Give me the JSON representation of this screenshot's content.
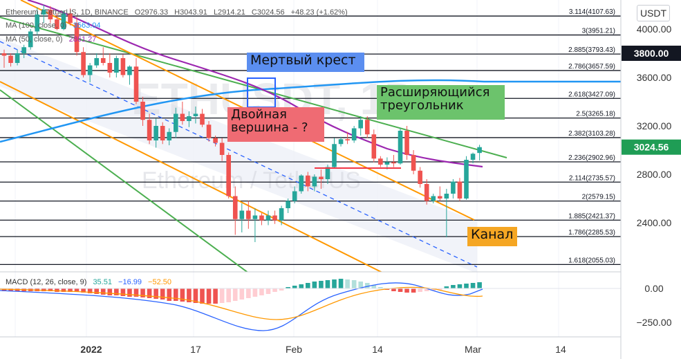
{
  "header": {
    "symbol": "Ethereum / TetherUS, 1D, BINANCE",
    "open": "O2976.33",
    "high": "H3043.91",
    "low": "L2914.21",
    "close": "C3024.56",
    "change": "+48.23 (+1.62%)",
    "ma1_label": "MA (100, close, 0)",
    "ma1_value": "3563.04",
    "ma2_label": "MA (50, close, 0)",
    "ma2_value": "2861.27",
    "currency_button": "USDT"
  },
  "annotations": {
    "death_cross": "Мертвый крест",
    "double_top": "Двойная\nвершина - ?",
    "triangle": "Расширяющийся\nтреугольник",
    "channel": "Канал"
  },
  "watermark": {
    "big": "ETHUSDT, 1D",
    "small": "Ethereum / TetherUS"
  },
  "price_axis": {
    "ticks": [
      "4000.00",
      "3600.00",
      "3200.00",
      "2800.00",
      "2400.00"
    ],
    "highlight_label": "3800.00",
    "last_price_label": "3024.56"
  },
  "macd": {
    "label": "MACD (12, 26, close, 9)",
    "hist": "35.51",
    "macd": "−16.99",
    "signal": "−52.50",
    "ticks": [
      "0.00",
      "−250.00"
    ]
  },
  "time_axis": {
    "labels": [
      "2022",
      "17",
      "Feb",
      "14",
      "Mar",
      "14"
    ]
  },
  "fib_levels": [
    {
      "ratio": "3.114",
      "price": 4107.63
    },
    {
      "ratio": "3",
      "price": 3951.21
    },
    {
      "ratio": "2.885",
      "price": 3793.43
    },
    {
      "ratio": "2.786",
      "price": 3657.59
    },
    {
      "ratio": "2.618",
      "price": 3427.09
    },
    {
      "ratio": "2.5",
      "price": 3265.18
    },
    {
      "ratio": "2.382",
      "price": 3103.28
    },
    {
      "ratio": "2.236",
      "price": 2902.96
    },
    {
      "ratio": "2.114",
      "price": 2735.57
    },
    {
      "ratio": "2",
      "price": 2579.15
    },
    {
      "ratio": "1.885",
      "price": 2421.37
    },
    {
      "ratio": "1.786",
      "price": 2285.53
    },
    {
      "ratio": "1.618",
      "price": 2055.03
    }
  ],
  "colors": {
    "up": "#26a69a",
    "down": "#ef5350",
    "ma100": "#2196f3",
    "ma50": "#9c27b0",
    "green_line": "#4caf50",
    "orange_line": "#ff9800",
    "dashed": "#2962ff",
    "death_cross_bg": "#5b8ef0",
    "double_top_bg": "#ef6b73",
    "triangle_bg": "#6cc36c",
    "channel_bg": "#f5a623",
    "last_price_bg": "#1f9d55",
    "highlight_bg": "#131722",
    "macd_line": "#2962ff",
    "signal_line": "#ff9800"
  },
  "chart_data": {
    "type": "candlestick",
    "x_labels": [
      "2022",
      "17",
      "Feb",
      "14",
      "Mar",
      "14"
    ],
    "y_range": [
      1980,
      4200
    ],
    "candles": [
      [
        3800,
        3830,
        3680,
        3780
      ],
      [
        3780,
        3800,
        3690,
        3720
      ],
      [
        3720,
        3830,
        3700,
        3800
      ],
      [
        3800,
        3870,
        3760,
        3850
      ],
      [
        3850,
        4000,
        3830,
        3980
      ],
      [
        3980,
        4180,
        3950,
        4120
      ],
      [
        4120,
        4200,
        4050,
        4160
      ],
      [
        4160,
        4190,
        4050,
        4080
      ],
      [
        4080,
        4130,
        3990,
        4000
      ],
      [
        4000,
        4150,
        3990,
        4130
      ],
      [
        4130,
        4170,
        4030,
        4050
      ],
      [
        4050,
        4100,
        3780,
        3810
      ],
      [
        3810,
        3850,
        3600,
        3620
      ],
      [
        3620,
        3720,
        3560,
        3700
      ],
      [
        3700,
        3800,
        3680,
        3760
      ],
      [
        3760,
        3850,
        3700,
        3720
      ],
      [
        3720,
        3800,
        3600,
        3640
      ],
      [
        3640,
        3780,
        3600,
        3760
      ],
      [
        3760,
        3790,
        3600,
        3620
      ],
      [
        3620,
        3700,
        3540,
        3690
      ],
      [
        3690,
        3760,
        3380,
        3400
      ],
      [
        3400,
        3440,
        3200,
        3250
      ],
      [
        3250,
        3300,
        3050,
        3080
      ],
      [
        3080,
        3260,
        3020,
        3200
      ],
      [
        3200,
        3230,
        3050,
        3080
      ],
      [
        3080,
        3180,
        3040,
        3150
      ],
      [
        3150,
        3350,
        3100,
        3300
      ],
      [
        3300,
        3400,
        3210,
        3240
      ],
      [
        3240,
        3320,
        3190,
        3280
      ],
      [
        3280,
        3360,
        3220,
        3300
      ],
      [
        3300,
        3340,
        3190,
        3210
      ],
      [
        3210,
        3240,
        3070,
        3100
      ],
      [
        3100,
        3120,
        3030,
        3060
      ],
      [
        3060,
        3100,
        2910,
        2960
      ],
      [
        2960,
        2980,
        2600,
        2620
      ],
      [
        2620,
        2700,
        2300,
        2430
      ],
      [
        2430,
        2560,
        2320,
        2500
      ],
      [
        2500,
        2580,
        2350,
        2430
      ],
      [
        2430,
        2520,
        2240,
        2460
      ],
      [
        2460,
        2480,
        2380,
        2420
      ],
      [
        2420,
        2500,
        2380,
        2460
      ],
      [
        2460,
        2500,
        2390,
        2420
      ],
      [
        2420,
        2540,
        2380,
        2520
      ],
      [
        2520,
        2600,
        2480,
        2580
      ],
      [
        2580,
        2700,
        2560,
        2660
      ],
      [
        2660,
        2800,
        2640,
        2790
      ],
      [
        2790,
        2820,
        2660,
        2700
      ],
      [
        2700,
        2800,
        2660,
        2780
      ],
      [
        2780,
        2840,
        2680,
        2760
      ],
      [
        2760,
        2880,
        2720,
        2860
      ],
      [
        2860,
        3100,
        2850,
        3050
      ],
      [
        3050,
        3110,
        3030,
        3090
      ],
      [
        3090,
        3150,
        3050,
        3080
      ],
      [
        3080,
        3200,
        3060,
        3180
      ],
      [
        3180,
        3280,
        3120,
        3250
      ],
      [
        3250,
        3280,
        3100,
        3130
      ],
      [
        3130,
        3170,
        2900,
        2930
      ],
      [
        2930,
        2950,
        2860,
        2880
      ],
      [
        2880,
        2940,
        2840,
        2900
      ],
      [
        2900,
        2960,
        2860,
        2890
      ],
      [
        2890,
        3180,
        2880,
        3160
      ],
      [
        3160,
        3200,
        2920,
        2960
      ],
      [
        2960,
        3000,
        2800,
        2830
      ],
      [
        2830,
        2860,
        2690,
        2720
      ],
      [
        2720,
        2760,
        2550,
        2580
      ],
      [
        2580,
        2640,
        2560,
        2620
      ],
      [
        2620,
        2700,
        2580,
        2600
      ],
      [
        2600,
        2680,
        2280,
        2640
      ],
      [
        2640,
        2760,
        2600,
        2740
      ],
      [
        2740,
        2770,
        2580,
        2600
      ],
      [
        2600,
        2950,
        2590,
        2920
      ],
      [
        2920,
        2980,
        2890,
        2970
      ],
      [
        2976.33,
        3043.91,
        2914.21,
        3024.56
      ]
    ]
  }
}
